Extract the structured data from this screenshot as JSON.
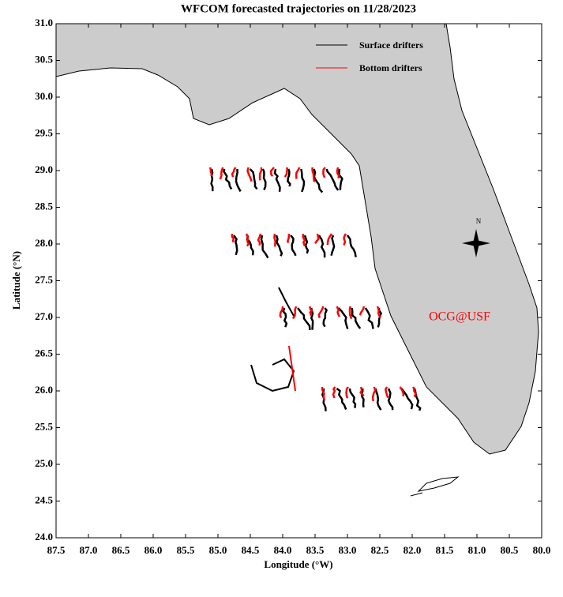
{
  "map": {
    "title": "WFCOM forecasted trajectories on 11/28/2023",
    "xlabel": "Longitude (°W)",
    "ylabel": "Latitude (°N)",
    "xlim": [
      87.5,
      80.0
    ],
    "ylim": [
      24.0,
      31.0
    ],
    "xticks": [
      87.5,
      {
        "value": 87,
        "label": "87.0"
      },
      86.5,
      {
        "value": 86,
        "label": "86.0"
      },
      85.5,
      {
        "value": 85,
        "label": "85.0"
      },
      84.5,
      {
        "value": 84,
        "label": "84.0"
      },
      83.5,
      {
        "value": 83,
        "label": "83.0"
      },
      82.5,
      {
        "value": 82,
        "label": "82.0"
      },
      81.5,
      {
        "value": 81,
        "label": "81.0"
      },
      80.5,
      {
        "value": 80,
        "label": "80.0"
      }
    ],
    "yticks": [
      {
        "value": 24,
        "label": "24.0"
      },
      24.5,
      {
        "value": 25,
        "label": "25.0"
      },
      25.5,
      {
        "value": 26,
        "label": "26.0"
      },
      26.5,
      {
        "value": 27,
        "label": "27.0"
      },
      27.5,
      {
        "value": 28,
        "label": "28.0"
      },
      28.5,
      {
        "value": 29,
        "label": "29.0"
      },
      29.5,
      {
        "value": 30,
        "label": "30.0"
      },
      30.5,
      {
        "value": 31,
        "label": "31.0"
      }
    ],
    "legend": [
      {
        "name": "Surface drifters",
        "color": "#000000"
      },
      {
        "name": "Bottom drifters",
        "color": "#ff0000"
      }
    ],
    "land_color": "#cccccc",
    "compass_label": "N",
    "annotation": "OCG@USF"
  }
}
